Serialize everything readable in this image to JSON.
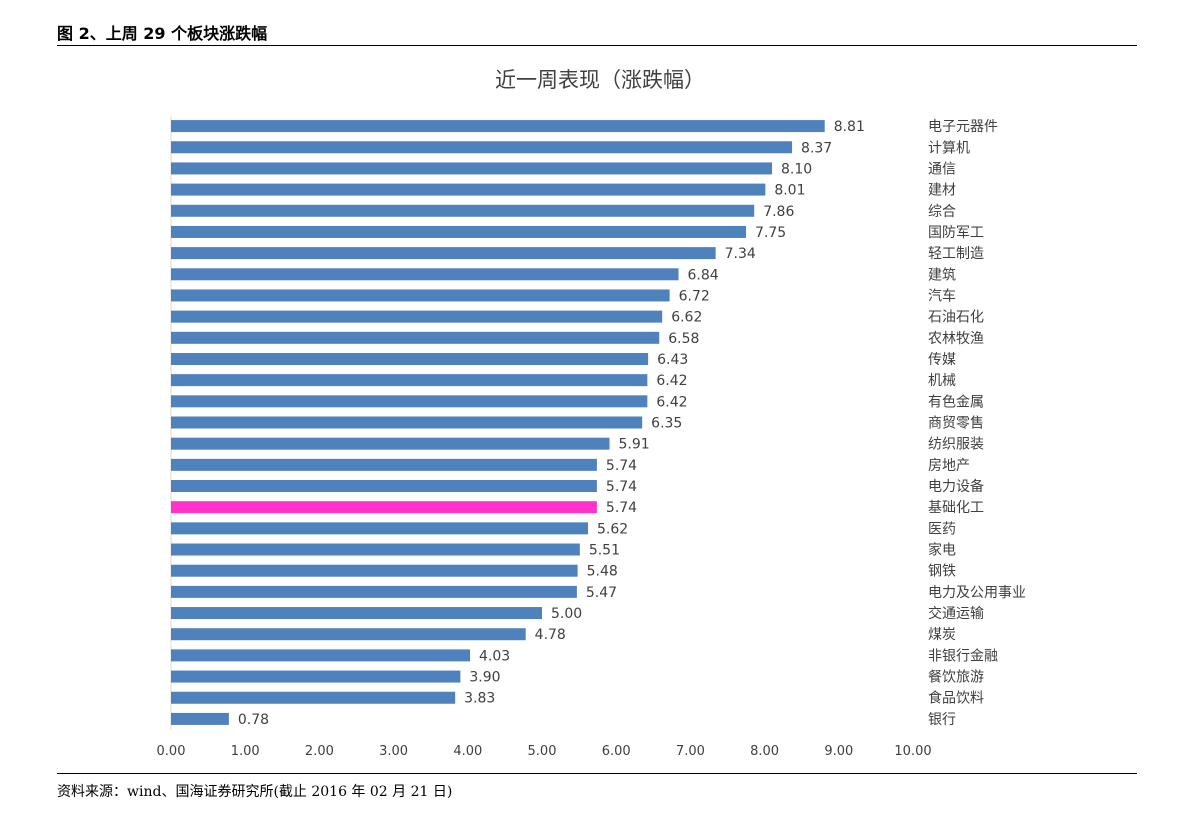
{
  "figure_title": "图 2、上周 29 个板块涨跌幅",
  "source": "资料来源：wind、国海证券研究所(截止 2016 年 02 月 21 日)",
  "colors": {
    "bar": "#4F81BD",
    "highlight": "#FF33CC",
    "label": "#404040"
  },
  "chart_data": {
    "type": "bar",
    "orientation": "horizontal",
    "title": "近一周表现（涨跌幅）",
    "xlabel": "",
    "ylabel": "",
    "xlim": [
      0,
      10
    ],
    "xticks": [
      "0.00",
      "1.00",
      "2.00",
      "3.00",
      "4.00",
      "5.00",
      "6.00",
      "7.00",
      "8.00",
      "9.00",
      "10.00"
    ],
    "grid": false,
    "highlighted_category": "基础化工",
    "categories": [
      "电子元器件",
      "计算机",
      "通信",
      "建材",
      "综合",
      "国防军工",
      "轻工制造",
      "建筑",
      "汽车",
      "石油石化",
      "农林牧渔",
      "传媒",
      "机械",
      "有色金属",
      "商贸零售",
      "纺织服装",
      "房地产",
      "电力设备",
      "基础化工",
      "医药",
      "家电",
      "钢铁",
      "电力及公用事业",
      "交通运输",
      "煤炭",
      "非银行金融",
      "餐饮旅游",
      "食品饮料",
      "银行"
    ],
    "values": [
      8.81,
      8.37,
      8.1,
      8.01,
      7.86,
      7.75,
      7.34,
      6.84,
      6.72,
      6.62,
      6.58,
      6.43,
      6.42,
      6.42,
      6.35,
      5.91,
      5.74,
      5.74,
      5.74,
      5.62,
      5.51,
      5.48,
      5.47,
      5.0,
      4.78,
      4.03,
      3.9,
      3.83,
      0.78
    ],
    "value_labels": [
      "8.81",
      "8.37",
      "8.10",
      "8.01",
      "7.86",
      "7.75",
      "7.34",
      "6.84",
      "6.72",
      "6.62",
      "6.58",
      "6.43",
      "6.42",
      "6.42",
      "6.35",
      "5.91",
      "5.74",
      "5.74",
      "5.74",
      "5.62",
      "5.51",
      "5.48",
      "5.47",
      "5.00",
      "4.78",
      "4.03",
      "3.90",
      "3.83",
      "0.78"
    ]
  }
}
